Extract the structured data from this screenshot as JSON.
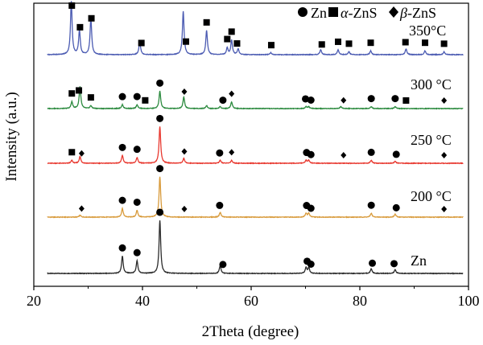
{
  "chart_data": {
    "type": "line",
    "xlabel": "2Theta (degree)",
    "ylabel": "Intensity (a.u.)",
    "xlim": [
      20,
      100
    ],
    "x_ticks": [
      "20",
      "40",
      "60",
      "80",
      "100"
    ],
    "grid": false,
    "legend_position": "top-right",
    "legend": [
      {
        "marker": "circle",
        "label": "Zn"
      },
      {
        "marker": "square",
        "prefix": "α",
        "label": "-ZnS"
      },
      {
        "marker": "diamond",
        "prefix": "β",
        "label": "-ZnS"
      }
    ],
    "series": [
      {
        "name": "Zn",
        "color": "#2b2b2b",
        "peaks": [
          [
            36.3,
            0.18
          ],
          [
            39.0,
            0.13
          ],
          [
            43.2,
            0.55
          ],
          [
            54.3,
            0.08
          ],
          [
            70.1,
            0.06
          ],
          [
            70.6,
            0.06
          ],
          [
            82.1,
            0.05
          ],
          [
            86.5,
            0.04
          ]
        ],
        "markers": [
          {
            "x": 36.3,
            "type": "circle"
          },
          {
            "x": 39.0,
            "type": "circle"
          },
          {
            "x": 43.2,
            "type": "circle"
          },
          {
            "x": 54.8,
            "type": "circle"
          },
          {
            "x": 70.3,
            "type": "circle"
          },
          {
            "x": 71.0,
            "type": "circle"
          },
          {
            "x": 82.3,
            "type": "circle"
          },
          {
            "x": 86.3,
            "type": "circle"
          }
        ]
      },
      {
        "name": "200 °C",
        "color": "#d89a3a",
        "peaks": [
          [
            28.5,
            0.02
          ],
          [
            36.3,
            0.09
          ],
          [
            39.0,
            0.07
          ],
          [
            43.2,
            0.42
          ],
          [
            54.3,
            0.05
          ],
          [
            70.1,
            0.04
          ],
          [
            70.6,
            0.04
          ],
          [
            82.1,
            0.04
          ],
          [
            86.5,
            0.03
          ]
        ],
        "markers": [
          {
            "x": 28.8,
            "type": "diamond"
          },
          {
            "x": 36.3,
            "type": "circle"
          },
          {
            "x": 39.0,
            "type": "circle"
          },
          {
            "x": 43.2,
            "type": "circle"
          },
          {
            "x": 47.7,
            "type": "diamond"
          },
          {
            "x": 54.2,
            "type": "circle"
          },
          {
            "x": 70.2,
            "type": "circle"
          },
          {
            "x": 71.0,
            "type": "circle"
          },
          {
            "x": 82.1,
            "type": "circle"
          },
          {
            "x": 86.7,
            "type": "circle"
          },
          {
            "x": 95.5,
            "type": "diamond"
          }
        ]
      },
      {
        "name": "250 °C",
        "color": "#e8382f",
        "peaks": [
          [
            27.0,
            0.03
          ],
          [
            28.5,
            0.07
          ],
          [
            36.3,
            0.08
          ],
          [
            39.0,
            0.06
          ],
          [
            43.2,
            0.38
          ],
          [
            47.6,
            0.05
          ],
          [
            54.3,
            0.03
          ],
          [
            56.4,
            0.03
          ],
          [
            70.1,
            0.03
          ],
          [
            70.6,
            0.03
          ],
          [
            82.1,
            0.03
          ],
          [
            86.5,
            0.02
          ]
        ],
        "markers": [
          {
            "x": 27.0,
            "type": "square"
          },
          {
            "x": 28.8,
            "type": "diamond"
          },
          {
            "x": 36.3,
            "type": "circle"
          },
          {
            "x": 39.0,
            "type": "circle"
          },
          {
            "x": 43.2,
            "type": "circle"
          },
          {
            "x": 47.7,
            "type": "diamond"
          },
          {
            "x": 54.2,
            "type": "circle"
          },
          {
            "x": 56.4,
            "type": "diamond"
          },
          {
            "x": 70.2,
            "type": "circle"
          },
          {
            "x": 71.0,
            "type": "circle"
          },
          {
            "x": 77.0,
            "type": "diamond"
          },
          {
            "x": 82.1,
            "type": "circle"
          },
          {
            "x": 86.7,
            "type": "circle"
          },
          {
            "x": 95.5,
            "type": "diamond"
          }
        ]
      },
      {
        "name": "300 °C",
        "color": "#2b8a3e",
        "peaks": [
          [
            27.0,
            0.07
          ],
          [
            28.5,
            0.23
          ],
          [
            30.5,
            0.03
          ],
          [
            36.3,
            0.04
          ],
          [
            39.0,
            0.04
          ],
          [
            43.2,
            0.18
          ],
          [
            47.6,
            0.12
          ],
          [
            51.8,
            0.03
          ],
          [
            54.3,
            0.02
          ],
          [
            56.4,
            0.07
          ],
          [
            70.1,
            0.02
          ],
          [
            70.6,
            0.02
          ],
          [
            76.5,
            0.02
          ],
          [
            82.1,
            0.02
          ],
          [
            86.5,
            0.02
          ]
        ],
        "markers": [
          {
            "x": 27.0,
            "type": "square"
          },
          {
            "x": 28.3,
            "type": "square"
          },
          {
            "x": 30.5,
            "type": "square"
          },
          {
            "x": 36.3,
            "type": "circle"
          },
          {
            "x": 39.0,
            "type": "circle"
          },
          {
            "x": 40.5,
            "type": "square"
          },
          {
            "x": 43.2,
            "type": "circle"
          },
          {
            "x": 47.7,
            "type": "diamond"
          },
          {
            "x": 54.8,
            "type": "circle"
          },
          {
            "x": 56.4,
            "type": "diamond"
          },
          {
            "x": 70.0,
            "type": "circle"
          },
          {
            "x": 71.0,
            "type": "circle"
          },
          {
            "x": 77.0,
            "type": "diamond"
          },
          {
            "x": 82.1,
            "type": "circle"
          },
          {
            "x": 86.5,
            "type": "circle"
          },
          {
            "x": 88.5,
            "type": "square"
          },
          {
            "x": 95.5,
            "type": "diamond"
          }
        ]
      },
      {
        "name": "350°C",
        "color": "#4b5bb2",
        "peaks": [
          [
            26.9,
            0.55
          ],
          [
            28.4,
            0.25
          ],
          [
            30.5,
            0.38
          ],
          [
            39.5,
            0.14
          ],
          [
            47.5,
            0.45
          ],
          [
            51.8,
            0.25
          ],
          [
            55.6,
            0.07
          ],
          [
            56.4,
            0.15
          ],
          [
            57.6,
            0.06
          ],
          [
            63.6,
            0.02
          ],
          [
            72.8,
            0.05
          ],
          [
            76.0,
            0.05
          ],
          [
            78.0,
            0.03
          ],
          [
            82.0,
            0.04
          ],
          [
            88.5,
            0.06
          ],
          [
            92.0,
            0.04
          ],
          [
            95.5,
            0.03
          ]
        ],
        "markers": [
          {
            "x": 27.0,
            "type": "square"
          },
          {
            "x": 28.5,
            "type": "square"
          },
          {
            "x": 30.6,
            "type": "square"
          },
          {
            "x": 39.8,
            "type": "square"
          },
          {
            "x": 48.0,
            "type": "square"
          },
          {
            "x": 51.8,
            "type": "square"
          },
          {
            "x": 55.6,
            "type": "square"
          },
          {
            "x": 56.4,
            "type": "square"
          },
          {
            "x": 57.4,
            "type": "square"
          },
          {
            "x": 63.7,
            "type": "square"
          },
          {
            "x": 73.0,
            "type": "square"
          },
          {
            "x": 76.0,
            "type": "square"
          },
          {
            "x": 78.0,
            "type": "square"
          },
          {
            "x": 82.0,
            "type": "square"
          },
          {
            "x": 88.4,
            "type": "square"
          },
          {
            "x": 92.0,
            "type": "square"
          },
          {
            "x": 95.5,
            "type": "square"
          }
        ]
      }
    ]
  }
}
